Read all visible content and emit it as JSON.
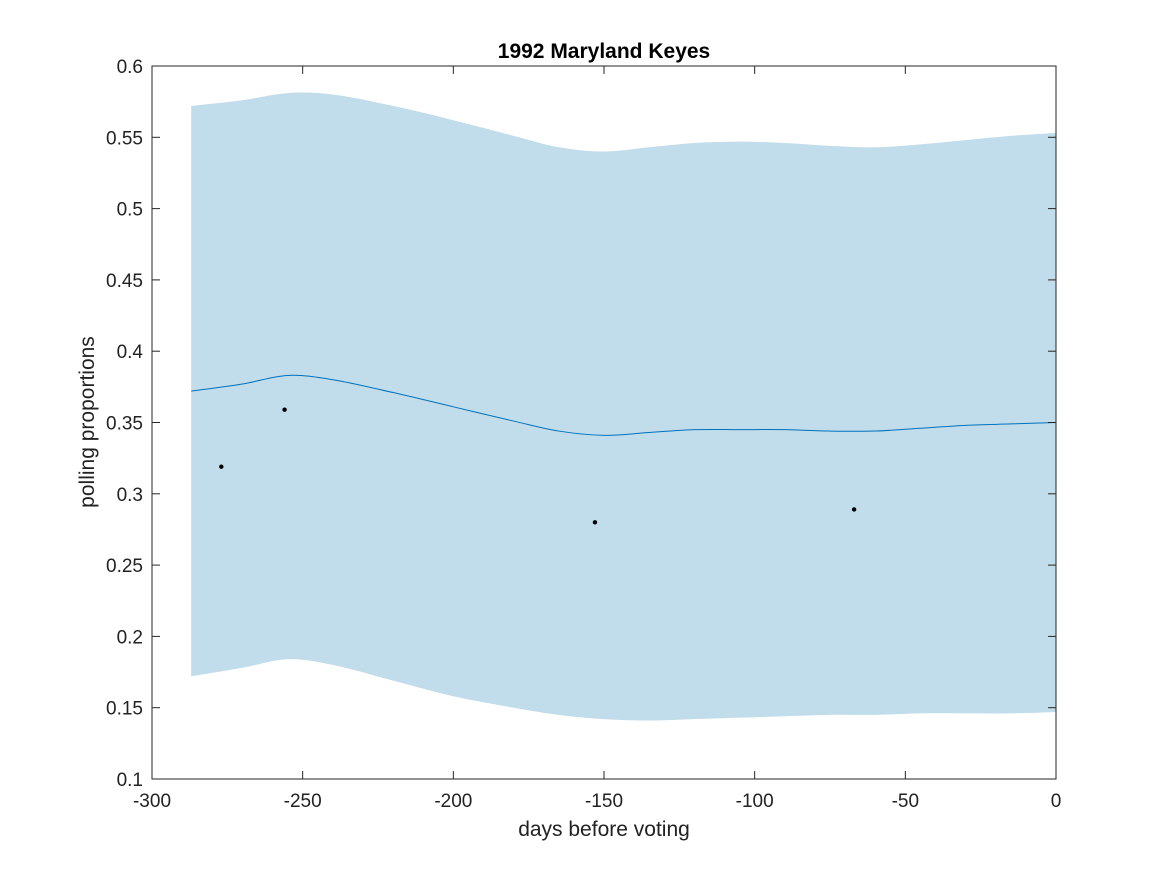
{
  "chart_data": {
    "type": "line",
    "title": "1992 Maryland Keyes",
    "xlabel": "days before voting",
    "ylabel": "polling proportions",
    "xlim": [
      -300,
      0
    ],
    "ylim": [
      0.1,
      0.6
    ],
    "xticks": [
      -300,
      -250,
      -200,
      -150,
      -100,
      -50,
      0
    ],
    "xtick_labels": [
      "-300",
      "-250",
      "-200",
      "-150",
      "-100",
      "-50",
      "0"
    ],
    "yticks": [
      0.1,
      0.15,
      0.2,
      0.25,
      0.3,
      0.35,
      0.4,
      0.45,
      0.5,
      0.55,
      0.6
    ],
    "ytick_labels": [
      "0.1",
      "0.15",
      "0.2",
      "0.25",
      "0.3",
      "0.35",
      "0.4",
      "0.45",
      "0.5",
      "0.55",
      "0.6"
    ],
    "grid": false,
    "colors": {
      "band": "#c1dcea",
      "line": "#0072bd",
      "points": "#000000",
      "axes": "#262626"
    },
    "band": {
      "x": [
        -287,
        -270,
        -255,
        -240,
        -220,
        -200,
        -180,
        -165,
        -150,
        -135,
        -120,
        -105,
        -90,
        -75,
        -60,
        -45,
        -30,
        -15,
        0
      ],
      "upper": [
        0.572,
        0.576,
        0.581,
        0.58,
        0.572,
        0.562,
        0.551,
        0.543,
        0.54,
        0.543,
        0.546,
        0.547,
        0.546,
        0.544,
        0.543,
        0.545,
        0.548,
        0.551,
        0.553
      ],
      "lower": [
        0.172,
        0.178,
        0.184,
        0.18,
        0.169,
        0.158,
        0.15,
        0.145,
        0.142,
        0.141,
        0.142,
        0.143,
        0.144,
        0.145,
        0.145,
        0.146,
        0.146,
        0.146,
        0.147
      ]
    },
    "series": [
      {
        "x": [
          -287,
          -270,
          -255,
          -240,
          -220,
          -200,
          -180,
          -165,
          -150,
          -135,
          -120,
          -105,
          -90,
          -75,
          -60,
          -45,
          -30,
          -15,
          0
        ],
        "values": [
          0.372,
          0.377,
          0.383,
          0.38,
          0.371,
          0.361,
          0.351,
          0.344,
          0.341,
          0.343,
          0.345,
          0.345,
          0.345,
          0.344,
          0.344,
          0.346,
          0.348,
          0.349,
          0.35
        ]
      }
    ],
    "points": {
      "x": [
        -277,
        -256,
        -153,
        -67
      ],
      "y": [
        0.319,
        0.359,
        0.28,
        0.289
      ]
    }
  }
}
